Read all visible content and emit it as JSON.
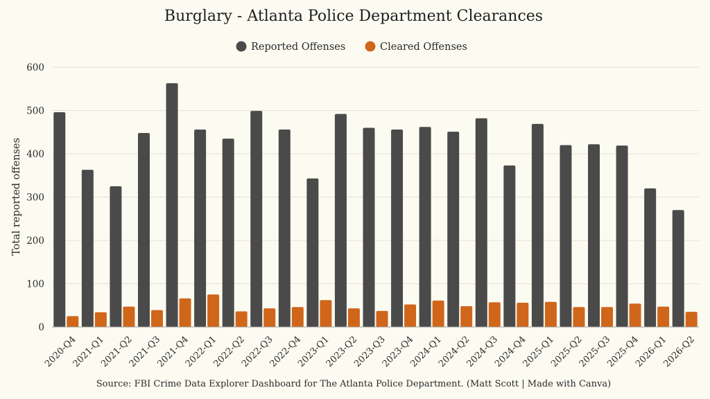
{
  "chart_data": {
    "type": "bar",
    "title": "Burglary - Atlanta Police Department Clearances",
    "ylabel": "Total reported offenses",
    "xlabel": "",
    "ylim": [
      0,
      600
    ],
    "yticks": [
      0,
      100,
      200,
      300,
      400,
      500,
      600
    ],
    "grid": true,
    "legend_position": "top-center",
    "categories": [
      "2020-Q4",
      "2021-Q1",
      "2021-Q2",
      "2021-Q3",
      "2021-Q4",
      "2022-Q1",
      "2022-Q2",
      "2022-Q3",
      "2022-Q4",
      "2023-Q1",
      "2023-Q2",
      "2023-Q3",
      "2023-Q4",
      "2024-Q1",
      "2024-Q2",
      "2024-Q3",
      "2024-Q4",
      "2025-Q1",
      "2025-Q2",
      "2025-Q3",
      "2025-Q4",
      "2026-Q1",
      "2026-Q2"
    ],
    "series": [
      {
        "name": "Reported Offenses",
        "color": "#4a4a4a",
        "values": [
          496,
          363,
          325,
          448,
          563,
          456,
          435,
          499,
          456,
          343,
          492,
          460,
          456,
          462,
          451,
          482,
          373,
          469,
          420,
          422,
          419,
          320,
          270
        ]
      },
      {
        "name": "Cleared Offenses",
        "color": "#d0661a",
        "values": [
          25,
          34,
          47,
          39,
          66,
          75,
          36,
          43,
          46,
          62,
          43,
          37,
          52,
          61,
          48,
          57,
          56,
          58,
          46,
          46,
          54,
          47,
          35
        ]
      }
    ],
    "source": "Source: FBI Crime Data Explorer Dashboard for The Atlanta Police Department. (Matt Scott | Made with Canva)"
  }
}
